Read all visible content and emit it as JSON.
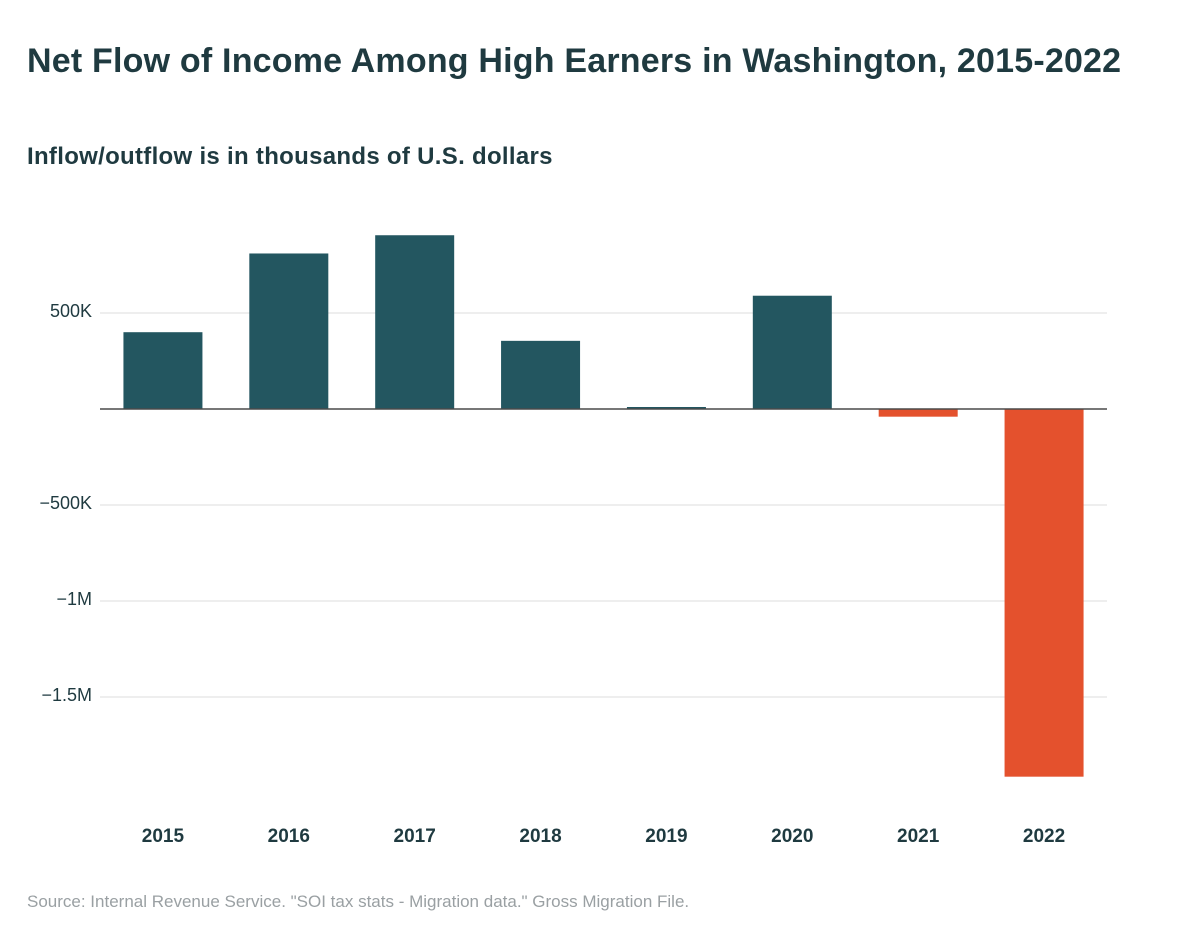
{
  "chart_data": {
    "type": "bar",
    "title": "Net Flow of Income Among High Earners in Washington, 2015-2022",
    "subtitle": "Inflow/outflow is in thousands of U.S. dollars",
    "categories": [
      "2015",
      "2016",
      "2017",
      "2018",
      "2019",
      "2020",
      "2021",
      "2022"
    ],
    "values": [
      400000,
      810000,
      905000,
      355000,
      8000,
      590000,
      -40000,
      -1915000
    ],
    "ylim": [
      -2000000,
      1000000
    ],
    "yticks": [
      {
        "value": 500000,
        "label": "500K"
      },
      {
        "value": -500000,
        "label": "−500K"
      },
      {
        "value": -1000000,
        "label": "−1M"
      },
      {
        "value": -1500000,
        "label": "−1.5M"
      }
    ],
    "xlabel": "",
    "ylabel": "",
    "grid": true,
    "colors": {
      "positive": "#235660",
      "negative": "#e4512d",
      "grid": "#e3e3e3",
      "zero_line": "#4a4a4a"
    },
    "source": "Source: Internal Revenue Service. \"SOI tax stats - Migration data.\" Gross Migration File."
  }
}
